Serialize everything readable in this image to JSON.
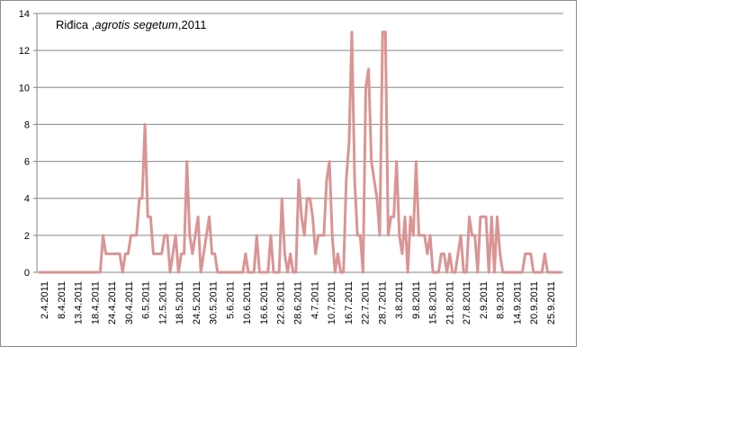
{
  "chart_data": {
    "type": "line",
    "title_parts": [
      "Riđica ,",
      "agrotis segetum",
      ",2011"
    ],
    "xlabel": "",
    "ylabel": "",
    "ylim": [
      0,
      14
    ],
    "yticks": [
      0,
      2,
      4,
      6,
      8,
      10,
      12,
      14
    ],
    "grid": true,
    "line_color": "#d99594",
    "x_tick_labels": [
      "2.4.2011",
      "8.4.2011",
      "13.4.2011",
      "18.4.2011",
      "24.4.2011",
      "30.4.2011",
      "6.5.2011",
      "12.5.2011",
      "18.5.2011",
      "24.5.2011",
      "30.5.2011",
      "5.6.2011",
      "10.6.2011",
      "16.6.2011",
      "22.6.2011",
      "28.6.2011",
      "4.7.2011",
      "10.7.2011",
      "16.7.2011",
      "22.7.2011",
      "28.7.2011",
      "3.8.2011",
      "9.8.2011",
      "15.8.2011",
      "21.8.2011",
      "27.8.2011",
      "2.9.2011",
      "8.9.2011",
      "14.9.2011",
      "20.9.2011",
      "25.9.2011"
    ],
    "series": [
      {
        "values": [
          0,
          0,
          0,
          0,
          0,
          0,
          0,
          0,
          0,
          0,
          0,
          0,
          0,
          0,
          0,
          0,
          0,
          0,
          0,
          0,
          0,
          0,
          0,
          2,
          1,
          1,
          1,
          1,
          1,
          1,
          0,
          1,
          1,
          2,
          2,
          2,
          4,
          4,
          8,
          3,
          3,
          1,
          1,
          1,
          1,
          2,
          2,
          0,
          1,
          2,
          0,
          1,
          1,
          6,
          2,
          1,
          2,
          3,
          0,
          1,
          2,
          3,
          1,
          1,
          0,
          0,
          0,
          0,
          0,
          0,
          0,
          0,
          0,
          0,
          1,
          0,
          0,
          0,
          2,
          0,
          0,
          0,
          0,
          2,
          0,
          0,
          0,
          4,
          1,
          0,
          1,
          0,
          0,
          5,
          3,
          2,
          4,
          4,
          3,
          1,
          2,
          2,
          2,
          5,
          6,
          2,
          0,
          1,
          0,
          0,
          5,
          7,
          13,
          5,
          2,
          2,
          0,
          10,
          11,
          6,
          5,
          4,
          2,
          13,
          13,
          2,
          3,
          3,
          6,
          2,
          1,
          3,
          0,
          3,
          2,
          6,
          2,
          2,
          2,
          1,
          2,
          0,
          0,
          0,
          1,
          1,
          0,
          1,
          0,
          0,
          1,
          2,
          0,
          0,
          3,
          2,
          2,
          0,
          3,
          3,
          3,
          0,
          3,
          0,
          3,
          1,
          0,
          0,
          0,
          0,
          0,
          0,
          0,
          0,
          1,
          1,
          1,
          0,
          0,
          0,
          0,
          1,
          0,
          0,
          0,
          0,
          0,
          0
        ]
      }
    ]
  }
}
